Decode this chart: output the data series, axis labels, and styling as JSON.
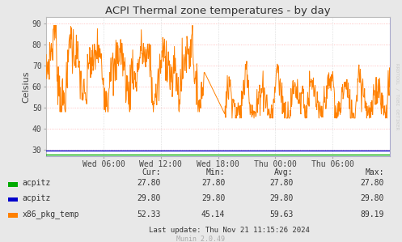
{
  "title": "ACPI Thermal zone temperatures - by day",
  "ylabel": "Celsius",
  "bg_color": "#e8e8e8",
  "ylim": [
    27,
    93
  ],
  "yticks": [
    30,
    40,
    50,
    60,
    70,
    80,
    90
  ],
  "xtick_labels": [
    "Wed 06:00",
    "Wed 12:00",
    "Wed 18:00",
    "Thu 00:00",
    "Thu 06:00"
  ],
  "xtick_pos": [
    0.1667,
    0.3333,
    0.5,
    0.6667,
    0.8333
  ],
  "acpitz1_val": 27.8,
  "acpitz2_val": 29.8,
  "legend_items": [
    {
      "label": "acpitz",
      "color": "#00aa00",
      "cur": "27.80",
      "min": "27.80",
      "avg": "27.80",
      "max": "27.80"
    },
    {
      "label": "acpitz",
      "color": "#0000cc",
      "cur": "29.80",
      "min": "29.80",
      "avg": "29.80",
      "max": "29.80"
    },
    {
      "label": "x86_pkg_temp",
      "color": "#ff8000",
      "cur": "52.33",
      "min": "45.14",
      "avg": "59.63",
      "max": "89.19"
    }
  ],
  "last_update": "Last update: Thu Nov 21 11:15:26 2024",
  "munin_version": "Munin 2.0.49",
  "watermark": "RRDTOOL / TOBI OETIKER",
  "orange_color": "#ff8000",
  "green_color": "#00aa00",
  "blue_color": "#0000cc"
}
